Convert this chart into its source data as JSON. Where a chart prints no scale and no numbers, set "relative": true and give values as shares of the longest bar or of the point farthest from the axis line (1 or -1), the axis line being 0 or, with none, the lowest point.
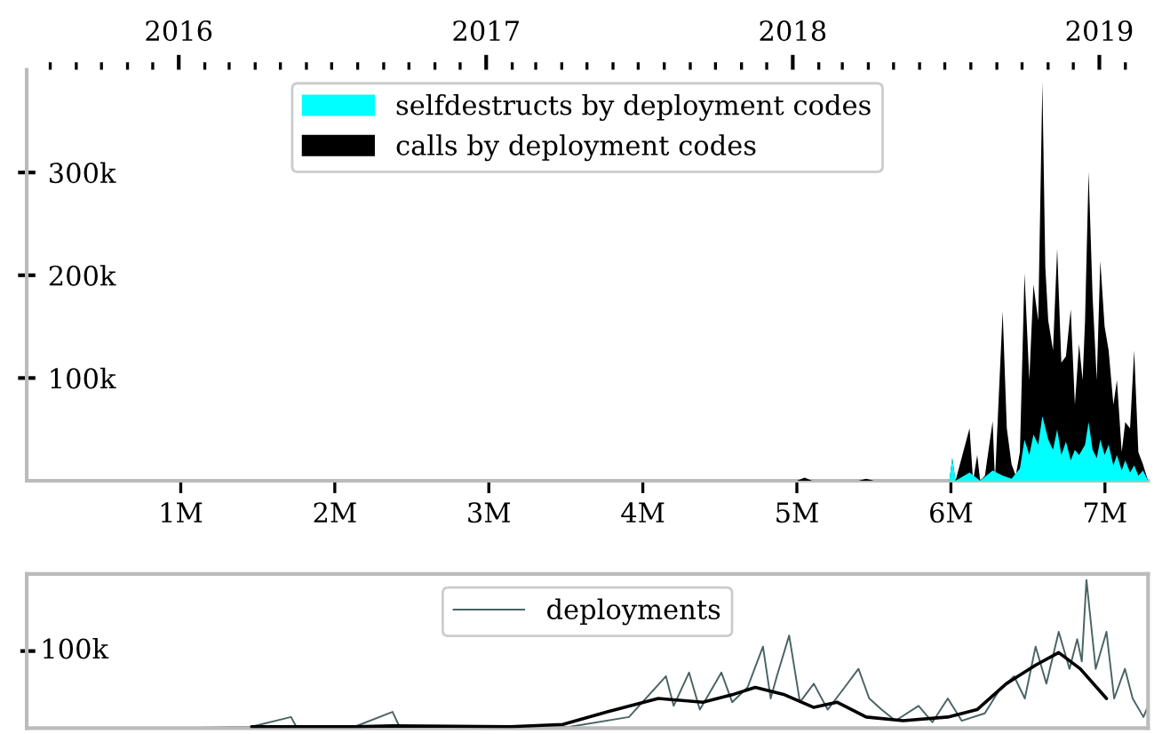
{
  "chart_data": [
    {
      "type": "area",
      "legend": "top",
      "xlim": [
        0,
        7280000
      ],
      "ylim": [
        0,
        400000
      ],
      "xticks": [
        {
          "value": 0,
          "label": null
        },
        {
          "value": 1000000,
          "label": "1M"
        },
        {
          "value": 2000000,
          "label": "2M"
        },
        {
          "value": 3000000,
          "label": "3M"
        },
        {
          "value": 4000000,
          "label": "4M"
        },
        {
          "value": 5000000,
          "label": "5M"
        },
        {
          "value": 6000000,
          "label": "6M"
        },
        {
          "value": 7000000,
          "label": "7M"
        }
      ],
      "yticks": [
        {
          "value": 100000,
          "label": "100k"
        },
        {
          "value": 200000,
          "label": "200k"
        },
        {
          "value": 300000,
          "label": "300k"
        }
      ],
      "x2lim": [
        "2015-07-04",
        "2019-02-28"
      ],
      "x2ticks": [
        {
          "value": "2015-08-01",
          "label": null
        },
        {
          "value": "2015-09-01",
          "label": null
        },
        {
          "value": "2015-10-01",
          "label": null
        },
        {
          "value": "2015-11-01",
          "label": null
        },
        {
          "value": "2015-12-01",
          "label": null
        },
        {
          "value": "2016-01-01",
          "label": "2016"
        },
        {
          "value": "2016-02-01",
          "label": null
        },
        {
          "value": "2016-03-01",
          "label": null
        },
        {
          "value": "2016-04-01",
          "label": null
        },
        {
          "value": "2016-05-01",
          "label": null
        },
        {
          "value": "2016-06-01",
          "label": null
        },
        {
          "value": "2016-07-01",
          "label": null
        },
        {
          "value": "2016-08-01",
          "label": null
        },
        {
          "value": "2016-09-01",
          "label": null
        },
        {
          "value": "2016-10-01",
          "label": null
        },
        {
          "value": "2016-11-01",
          "label": null
        },
        {
          "value": "2016-12-01",
          "label": null
        },
        {
          "value": "2017-01-01",
          "label": "2017"
        },
        {
          "value": "2017-02-01",
          "label": null
        },
        {
          "value": "2017-03-01",
          "label": null
        },
        {
          "value": "2017-04-01",
          "label": null
        },
        {
          "value": "2017-05-01",
          "label": null
        },
        {
          "value": "2017-06-01",
          "label": null
        },
        {
          "value": "2017-07-01",
          "label": null
        },
        {
          "value": "2017-08-01",
          "label": null
        },
        {
          "value": "2017-09-01",
          "label": null
        },
        {
          "value": "2017-10-01",
          "label": null
        },
        {
          "value": "2017-11-01",
          "label": null
        },
        {
          "value": "2017-12-01",
          "label": null
        },
        {
          "value": "2018-01-01",
          "label": "2018"
        },
        {
          "value": "2018-02-01",
          "label": null
        },
        {
          "value": "2018-03-01",
          "label": null
        },
        {
          "value": "2018-04-01",
          "label": null
        },
        {
          "value": "2018-05-01",
          "label": null
        },
        {
          "value": "2018-06-01",
          "label": null
        },
        {
          "value": "2018-07-01",
          "label": null
        },
        {
          "value": "2018-08-01",
          "label": null
        },
        {
          "value": "2018-09-01",
          "label": null
        },
        {
          "value": "2018-10-01",
          "label": null
        },
        {
          "value": "2018-11-01",
          "label": null
        },
        {
          "value": "2018-12-01",
          "label": null
        },
        {
          "value": "2019-01-01",
          "label": "2019"
        },
        {
          "value": "2019-02-01",
          "label": null
        }
      ],
      "series": [
        {
          "name": "selfdestructs by deployment codes",
          "color": "#00ffff",
          "x": [
            0,
            5990000,
            6009000,
            6030000,
            6121000,
            6190000,
            6271000,
            6336000,
            6394000,
            6448000,
            6478000,
            6509000,
            6536000,
            6567000,
            6594000,
            6632000,
            6663000,
            6690000,
            6717000,
            6747000,
            6778000,
            6805000,
            6832000,
            6871000,
            6894000,
            6920000,
            6947000,
            6970000,
            6998000,
            7024000,
            7055000,
            7078000,
            7109000,
            7132000,
            7163000,
            7190000,
            7217000,
            7247000,
            7280000
          ],
          "values": [
            0,
            0,
            22000,
            0,
            8000,
            0,
            10000,
            5000,
            2000,
            12000,
            40000,
            25000,
            45000,
            35000,
            63000,
            40000,
            30000,
            50000,
            25000,
            38000,
            20000,
            30000,
            25000,
            35000,
            57000,
            30000,
            22000,
            40000,
            25000,
            35000,
            15000,
            25000,
            10000,
            20000,
            8000,
            15000,
            5000,
            10000,
            0
          ]
        },
        {
          "name": "calls by deployment codes",
          "color": "#000000",
          "x": [
            0,
            5000000,
            5050000,
            5100000,
            5400000,
            5450000,
            5500000,
            5990000,
            6009000,
            6030000,
            6121000,
            6144000,
            6171000,
            6190000,
            6221000,
            6271000,
            6286000,
            6336000,
            6363000,
            6394000,
            6421000,
            6448000,
            6478000,
            6509000,
            6536000,
            6567000,
            6594000,
            6613000,
            6632000,
            6663000,
            6690000,
            6717000,
            6747000,
            6778000,
            6805000,
            6832000,
            6855000,
            6871000,
            6894000,
            6920000,
            6947000,
            6970000,
            6998000,
            7024000,
            7055000,
            7078000,
            7109000,
            7132000,
            7163000,
            7190000,
            7217000,
            7247000,
            7280000
          ],
          "values": [
            0,
            0,
            3000,
            0,
            0,
            2000,
            0,
            0,
            22000,
            0,
            51000,
            0,
            25000,
            0,
            5000,
            58000,
            0,
            165000,
            51000,
            16000,
            5000,
            28000,
            202000,
            98000,
            191000,
            156000,
            388000,
            208000,
            156000,
            127000,
            226000,
            115000,
            121000,
            167000,
            74000,
            133000,
            98000,
            156000,
            301000,
            179000,
            98000,
            214000,
            150000,
            127000,
            74000,
            98000,
            28000,
            57000,
            51000,
            127000,
            28000,
            16000,
            0
          ]
        }
      ]
    },
    {
      "type": "line",
      "legend": "top",
      "relative": true,
      "xlim": [
        0,
        7280000
      ],
      "annotations": [
        "100k"
      ],
      "series": [
        {
          "name": "deployments",
          "color": "#4a6363",
          "x": [
            1000000,
            1460000,
            1716000,
            1750000,
            2130000,
            2375000,
            2420000,
            2710000,
            3140000,
            3530000,
            3910000,
            4150000,
            4200000,
            4300000,
            4370000,
            4440000,
            4510000,
            4580000,
            4680000,
            4780000,
            4830000,
            4870000,
            4950000,
            5020000,
            5110000,
            5200000,
            5310000,
            5400000,
            5470000,
            5550000,
            5640000,
            5790000,
            5880000,
            5980000,
            6070000,
            6220000,
            6310000,
            6410000,
            6480000,
            6550000,
            6620000,
            6700000,
            6770000,
            6820000,
            6850000,
            6880000,
            6940000,
            7010000,
            7060000,
            7130000,
            7180000,
            7250000,
            7280000
          ],
          "values": [
            0,
            0.01,
            0.075,
            0.01,
            0.01,
            0.11,
            0.01,
            0,
            0,
            0.01,
            0.075,
            0.35,
            0.15,
            0.375,
            0.125,
            0.25,
            0.375,
            0.175,
            0.275,
            0.55,
            0.2,
            0.35,
            0.625,
            0.175,
            0.3,
            0.125,
            0.275,
            0.4,
            0.2,
            0.125,
            0.05,
            0.15,
            0.04,
            0.2,
            0.05,
            0.1,
            0.25,
            0.35,
            0.2,
            0.55,
            0.3,
            0.65,
            0.4,
            0.6,
            0.45,
            1,
            0.4,
            0.65,
            0.2,
            0.4,
            0.2,
            0.075,
            0.15
          ]
        },
        {
          "color": "#000000",
          "x": [
            1460000,
            1850000,
            2130000,
            2375000,
            3140000,
            3480000,
            3770000,
            4100000,
            4390000,
            4580000,
            4730000,
            4920000,
            5110000,
            5260000,
            5450000,
            5690000,
            5980000,
            6170000,
            6360000,
            6550000,
            6700000,
            6840000,
            7010000
          ],
          "values": [
            0.01,
            0.01,
            0.01,
            0.015,
            0.01,
            0.025,
            0.11,
            0.2,
            0.175,
            0.225,
            0.275,
            0.225,
            0.14,
            0.175,
            0.075,
            0.05,
            0.075,
            0.125,
            0.3,
            0.425,
            0.51,
            0.4,
            0.2
          ]
        }
      ]
    }
  ]
}
